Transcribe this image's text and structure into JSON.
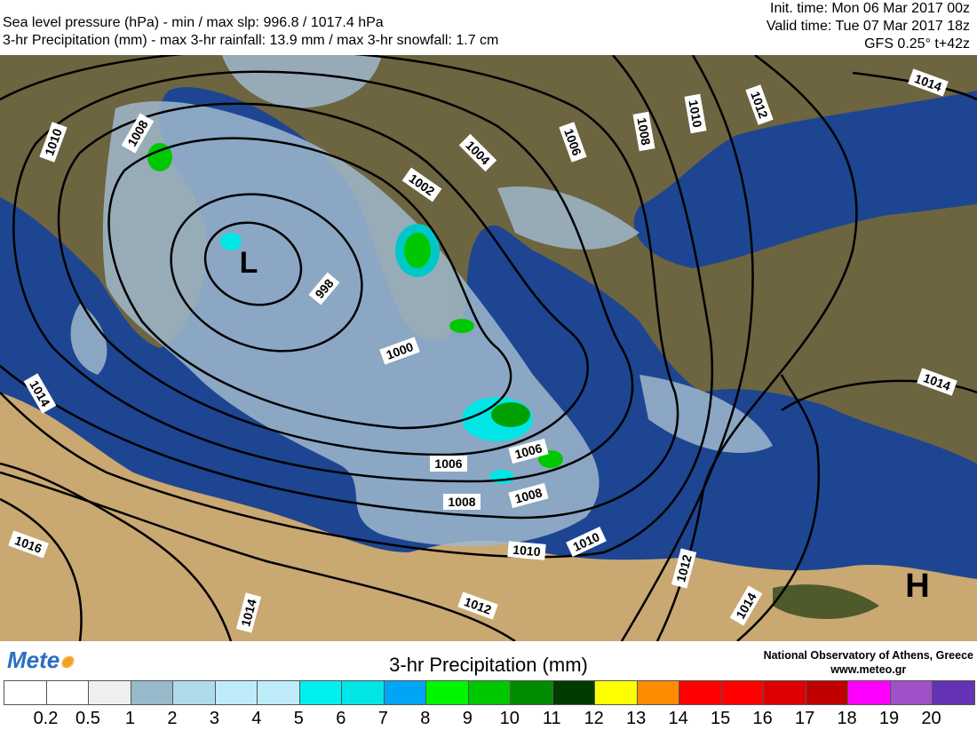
{
  "header": {
    "line1": "Sea level pressure (hPa) - min / max slp: 996.8 / 1017.4 hPa",
    "line2": "3-hr Precipitation (mm)  - max 3-hr rainfall: 13.9 mm / max 3-hr snowfall: 1.7 cm",
    "init_time": "Init. time: Mon 06 Mar 2017 00z",
    "valid_time": "Valid time: Tue 07 Mar 2017 18z",
    "model": "GFS 0.25° t+42z"
  },
  "map": {
    "low_label": "L",
    "high_label": "H",
    "isobar_labels": [
      "1008",
      "1010",
      "1004",
      "1006",
      "1008",
      "1010",
      "1012",
      "1014",
      "1002",
      "998",
      "1000",
      "1014",
      "1014",
      "1006",
      "1006",
      "1008",
      "1008",
      "1010",
      "1010",
      "1016",
      "1012",
      "1012",
      "1014",
      "1014"
    ],
    "colors": {
      "sea": "#1d4591",
      "land": "#7d6a45",
      "desert": "#c9a872",
      "precip_light": "#9fb8cc"
    }
  },
  "footer": {
    "logo_text": "Mete",
    "legend_title": "3-hr Precipitation (mm)",
    "org_name": "National Observatory of Athens, Greece",
    "org_url": "www.meteo.gr"
  },
  "legend": {
    "colors": [
      "#ffffff",
      "#ffffff",
      "#efefef",
      "#98b9c9",
      "#afdbeb",
      "#bfecfb",
      "#bfecfb",
      "#00f0f0",
      "#00e6e6",
      "#00a6f5",
      "#00f500",
      "#00c800",
      "#008c00",
      "#003c00",
      "#ffff00",
      "#ff8c00",
      "#ff0000",
      "#ff0000",
      "#dc0000",
      "#be0000",
      "#ff00ff",
      "#a050c8",
      "#6432b4"
    ],
    "ticks": [
      "0.2",
      "0.5",
      "1",
      "2",
      "3",
      "4",
      "5",
      "6",
      "7",
      "8",
      "9",
      "10",
      "11",
      "12",
      "13",
      "14",
      "15",
      "16",
      "17",
      "18",
      "19",
      "20"
    ]
  }
}
